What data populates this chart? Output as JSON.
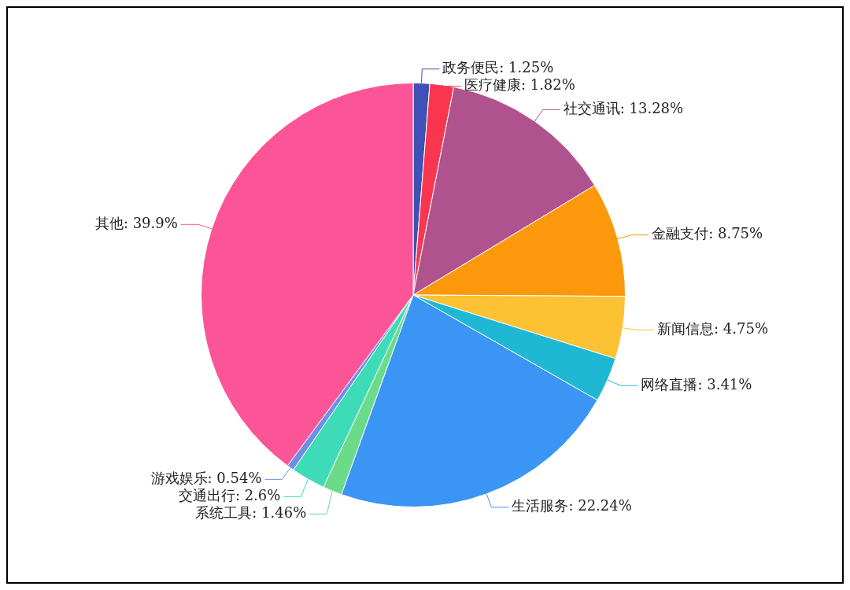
{
  "chart_data": {
    "type": "pie",
    "categories": [
      "政务便民",
      "医疗健康",
      "社交通讯",
      "金融支付",
      "新闻信息",
      "网络直播",
      "生活服务",
      "系统工具",
      "交通出行",
      "游戏娱乐",
      "其他"
    ],
    "values": [
      1.25,
      1.82,
      13.28,
      8.75,
      4.75,
      3.41,
      22.24,
      1.46,
      2.6,
      0.54,
      39.9
    ],
    "value_labels": [
      "1.25%",
      "1.82%",
      "13.28%",
      "8.75%",
      "4.75%",
      "3.41%",
      "22.24%",
      "1.46%",
      "2.6%",
      "0.54%",
      "39.9%"
    ],
    "colors": [
      "#3f51b5",
      "#f9364f",
      "#b0528d",
      "#fc980c",
      "#fdc134",
      "#1fb8d4",
      "#3a95f5",
      "#69db89",
      "#3ddbb7",
      "#6f8fe6",
      "#fc5597"
    ],
    "legend": false
  }
}
